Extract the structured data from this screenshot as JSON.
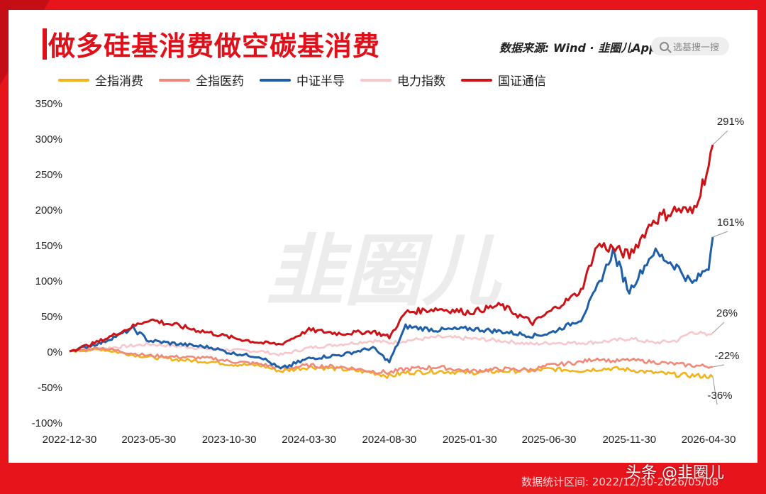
{
  "title": "做多硅基消费做空碳基消费",
  "source": {
    "label": "数据来源:",
    "value": "Wind",
    "brand": "韭圈儿App"
  },
  "search": {
    "placeholder": "选基搜一搜"
  },
  "footer": {
    "range_label": "数据统计区间:",
    "range_value": "2022/12/30-2026/05/08"
  },
  "watermark": {
    "toutiao": "头条 @韭圈儿",
    "center_logo": "韭圈儿"
  },
  "colors": {
    "background": "#e8141c",
    "title": "#e0101a"
  },
  "chart_data": {
    "type": "line",
    "ylim": [
      -100,
      350
    ],
    "yticks": [
      -100,
      -50,
      0,
      50,
      100,
      150,
      200,
      250,
      300,
      350
    ],
    "ytick_labels": [
      "-100%",
      "-50%",
      "0%",
      "50%",
      "100%",
      "150%",
      "200%",
      "250%",
      "300%",
      "350%"
    ],
    "xtick_labels": [
      "2022-12-30",
      "2023-05-30",
      "2023-10-30",
      "2024-03-30",
      "2024-08-30",
      "2025-01-30",
      "2025-06-30",
      "2025-11-30",
      "2026-04-30"
    ],
    "x": [
      "2022-12-30",
      "2023-02-28",
      "2023-04-30",
      "2023-05-30",
      "2023-07-30",
      "2023-09-30",
      "2023-10-30",
      "2023-12-30",
      "2024-02-05",
      "2024-03-30",
      "2024-05-30",
      "2024-07-30",
      "2024-08-30",
      "2024-09-30",
      "2024-11-30",
      "2025-01-30",
      "2025-03-30",
      "2025-05-30",
      "2025-06-30",
      "2025-08-30",
      "2025-09-30",
      "2025-10-30",
      "2025-11-30",
      "2026-01-15",
      "2026-02-28",
      "2026-03-30",
      "2026-04-30",
      "2026-05-08"
    ],
    "legend_position": "top-left",
    "grid": false,
    "series": [
      {
        "name": "全指消费",
        "color": "#f2b21c",
        "values": [
          0,
          3,
          -5,
          -8,
          -12,
          -15,
          -18,
          -20,
          -28,
          -22,
          -25,
          -30,
          -35,
          -30,
          -28,
          -30,
          -28,
          -27,
          -25,
          -27,
          -25,
          -24,
          -26,
          -30,
          -33,
          -34,
          -35,
          -36
        ]
      },
      {
        "name": "全指医药",
        "color": "#ef8a7a",
        "values": [
          0,
          5,
          -3,
          -6,
          -8,
          -10,
          -14,
          -18,
          -24,
          -20,
          -22,
          -28,
          -30,
          -25,
          -22,
          -28,
          -25,
          -26,
          -20,
          -15,
          -10,
          -14,
          -12,
          -15,
          -18,
          -20,
          -21,
          -22
        ]
      },
      {
        "name": "中证半导",
        "color": "#1e5fa8",
        "values": [
          0,
          12,
          32,
          15,
          10,
          5,
          -2,
          -8,
          -25,
          -10,
          -5,
          5,
          -15,
          35,
          30,
          32,
          28,
          22,
          25,
          45,
          90,
          140,
          85,
          140,
          120,
          95,
          120,
          161
        ]
      },
      {
        "name": "电力指数",
        "color": "#f6c8cc",
        "values": [
          0,
          4,
          8,
          10,
          7,
          3,
          2,
          0,
          -5,
          5,
          10,
          15,
          12,
          15,
          20,
          18,
          15,
          10,
          12,
          12,
          13,
          15,
          18,
          12,
          15,
          28,
          22,
          26
        ]
      },
      {
        "name": "国证通信",
        "color": "#cc1418",
        "values": [
          0,
          15,
          35,
          45,
          35,
          25,
          20,
          12,
          10,
          30,
          25,
          28,
          20,
          55,
          60,
          55,
          65,
          40,
          55,
          85,
          150,
          145,
          135,
          185,
          200,
          195,
          260,
          291
        ]
      }
    ],
    "end_labels": [
      {
        "series": "国证通信",
        "text": "291%"
      },
      {
        "series": "中证半导",
        "text": "161%"
      },
      {
        "series": "电力指数",
        "text": "26%"
      },
      {
        "series": "全指医药",
        "text": "-22%"
      },
      {
        "series": "全指消费",
        "text": "-36%"
      }
    ]
  }
}
